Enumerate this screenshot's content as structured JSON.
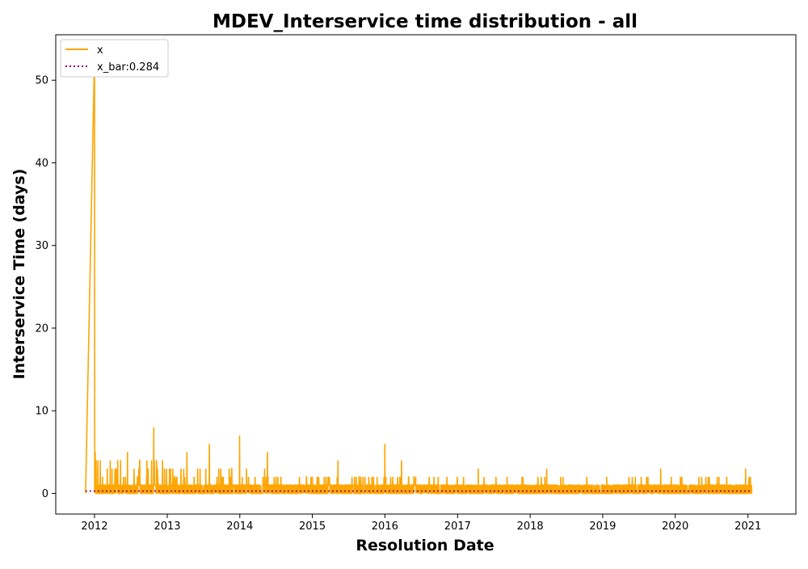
{
  "chart_data": {
    "type": "line",
    "title": "MDEV_Interservice time distribution - all",
    "xlabel": "Resolution Date",
    "ylabel": "Interservice Time (days)",
    "x_ticks": [
      "2012",
      "2013",
      "2014",
      "2015",
      "2016",
      "2017",
      "2018",
      "2019",
      "2020",
      "2021"
    ],
    "y_ticks": [
      "0",
      "10",
      "20",
      "30",
      "40",
      "50"
    ],
    "xlim": [
      "2011-06-20",
      "2021-08-30"
    ],
    "ylim": [
      -2.5,
      55.5
    ],
    "grid": false,
    "legend_position": "top-left",
    "series": [
      {
        "name": "x",
        "color": "#ffa500",
        "style": "solid",
        "note_points": [
          {
            "x": "2011-11-17",
            "y": 0
          },
          {
            "x": "2012-01-01",
            "y": 53
          },
          {
            "x": "2012-01-02",
            "y": 0
          },
          {
            "x": "2012-01-05",
            "y": 5
          },
          {
            "x": "2012-03-20",
            "y": 4
          },
          {
            "x": "2012-06-15",
            "y": 5
          },
          {
            "x": "2012-10-25",
            "y": 8
          },
          {
            "x": "2013-04-10",
            "y": 5
          },
          {
            "x": "2013-08-01",
            "y": 6
          },
          {
            "x": "2013-12-31",
            "y": 7
          },
          {
            "x": "2014-05-20",
            "y": 5
          },
          {
            "x": "2015-05-10",
            "y": 4
          },
          {
            "x": "2016-01-01",
            "y": 6
          },
          {
            "x": "2016-03-25",
            "y": 4
          },
          {
            "x": "2017-04-15",
            "y": 3
          },
          {
            "x": "2018-03-25",
            "y": 3
          },
          {
            "x": "2019-10-20",
            "y": 3
          },
          {
            "x": "2020-12-20",
            "y": 3
          },
          {
            "x": "2021-01-20",
            "y": 0
          }
        ]
      },
      {
        "name": "x_bar:0.284",
        "color": "#800080",
        "style": "dotted",
        "points": [
          {
            "x": "2011-11-17",
            "y": 0.284
          },
          {
            "x": "2021-01-20",
            "y": 0.284
          }
        ]
      }
    ]
  }
}
